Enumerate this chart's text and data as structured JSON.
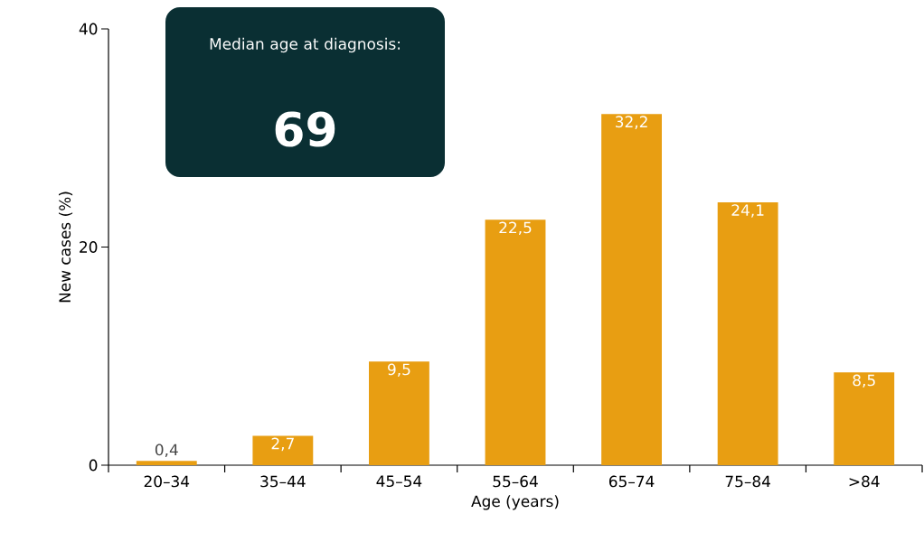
{
  "chart_data": {
    "type": "bar",
    "xlabel": "Age (years)",
    "ylabel": "New cases (%)",
    "categories": [
      "20–34",
      "35–44",
      "45–54",
      "55–64",
      "65–74",
      "75–84",
      ">84"
    ],
    "values": [
      0.4,
      2.7,
      9.5,
      22.5,
      32.2,
      24.1,
      8.5
    ],
    "value_labels": [
      "0,4",
      "2,7",
      "9,5",
      "22,5",
      "32,2",
      "24,1",
      "8,5"
    ],
    "color": "#e89e12",
    "ylim": [
      0,
      40
    ],
    "yticks": [
      0,
      20,
      40
    ],
    "grid": false,
    "annotations": [
      "Median age at diagnosis:",
      "69"
    ]
  }
}
